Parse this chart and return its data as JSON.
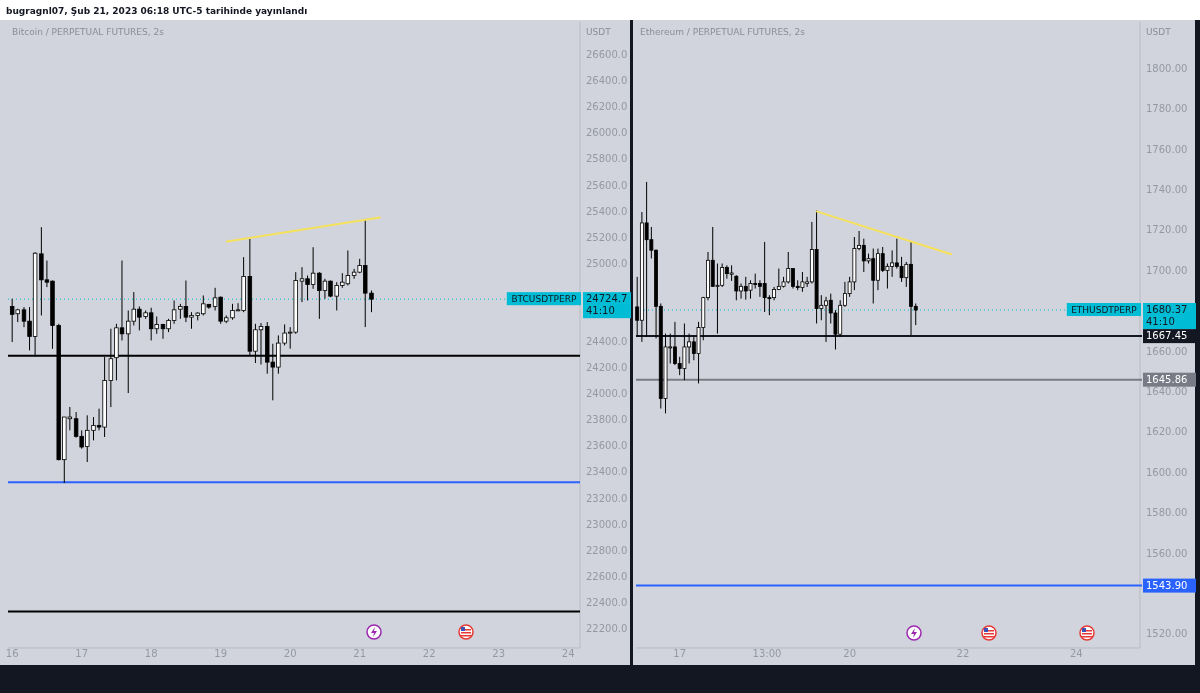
{
  "chart_data": [
    {
      "type": "candlestick",
      "title": "Bitcoin / PERPETUAL FUTURES, 2s",
      "ylabel": "USDT",
      "annotations": [
        "bugragnl07, Şub 21, 2023 06:18 UTC-5 tarihinde yayınlandı",
        {
          "text": "BTCUSDTPERP",
          "y": 24724.7
        }
      ],
      "x": [
        16,
        16.08,
        16.17,
        16.25,
        16.33,
        16.42,
        16.5,
        16.58,
        16.67,
        16.75,
        16.83,
        16.92,
        17,
        17.08,
        17.17,
        17.25,
        17.33,
        17.42,
        17.5,
        17.58,
        17.67,
        17.75,
        17.83,
        17.92,
        18,
        18.08,
        18.17,
        18.25,
        18.33,
        18.42,
        18.5,
        18.58,
        18.67,
        18.75,
        18.83,
        18.92,
        19,
        19.08,
        19.17,
        19.25,
        19.33,
        19.42,
        19.5,
        19.58,
        19.67,
        19.75,
        19.83,
        19.92,
        20,
        20.08,
        20.17,
        20.25,
        20.33,
        20.42,
        20.5,
        20.58,
        20.67,
        20.75,
        20.83,
        20.92,
        21,
        21.08,
        21.17
      ],
      "ohlc": [
        [
          24669,
          24728,
          24396,
          24608
        ],
        [
          24613,
          24651,
          24549,
          24643
        ],
        [
          24643,
          24664,
          24510,
          24556
        ],
        [
          24556,
          24664,
          24332,
          24439
        ],
        [
          24439,
          25085,
          24286,
          25077
        ],
        [
          25072,
          25277,
          24600,
          24873
        ],
        [
          24873,
          25021,
          24817,
          24855
        ],
        [
          24863,
          24868,
          24344,
          24523
        ],
        [
          24523,
          24536,
          23489,
          23494
        ],
        [
          23494,
          23821,
          23315,
          23821
        ],
        [
          23808,
          23898,
          23719,
          23821
        ],
        [
          23808,
          23859,
          23663,
          23673
        ],
        [
          23673,
          23719,
          23578,
          23591
        ],
        [
          23596,
          23834,
          23476,
          23719
        ],
        [
          23719,
          23821,
          23642,
          23757
        ],
        [
          23757,
          23885,
          23719,
          23744
        ],
        [
          23744,
          24281,
          23668,
          24102
        ],
        [
          24102,
          24498,
          23897,
          24268
        ],
        [
          24276,
          24536,
          24102,
          24505
        ],
        [
          24505,
          25021,
          24408,
          24459
        ],
        [
          24459,
          24638,
          24005,
          24556
        ],
        [
          24556,
          24779,
          24523,
          24648
        ],
        [
          24648,
          24669,
          24485,
          24587
        ],
        [
          24592,
          24638,
          24574,
          24620
        ],
        [
          24620,
          24659,
          24408,
          24498
        ],
        [
          24498,
          24592,
          24459,
          24531
        ],
        [
          24531,
          24536,
          24421,
          24498
        ],
        [
          24498,
          24574,
          24472,
          24562
        ],
        [
          24562,
          24715,
          24536,
          24643
        ],
        [
          24648,
          24689,
          24574,
          24669
        ],
        [
          24669,
          24868,
          24549,
          24587
        ],
        [
          24587,
          24625,
          24498,
          24600
        ],
        [
          24600,
          24625,
          24562,
          24618
        ],
        [
          24613,
          24753,
          24600,
          24689
        ],
        [
          24684,
          24689,
          24651,
          24664
        ],
        [
          24669,
          24812,
          24638,
          24735
        ],
        [
          24740,
          24745,
          24536,
          24556
        ],
        [
          24556,
          24600,
          24541,
          24582
        ],
        [
          24582,
          24689,
          24567,
          24638
        ],
        [
          24638,
          24694,
          24633,
          24643
        ],
        [
          24638,
          25047,
          24625,
          24899
        ],
        [
          24899,
          25187,
          24293,
          24326
        ],
        [
          24326,
          24536,
          24235,
          24490
        ],
        [
          24490,
          24541,
          24224,
          24516
        ],
        [
          24516,
          24549,
          24153,
          24242
        ],
        [
          24242,
          24383,
          23949,
          24204
        ],
        [
          24204,
          24447,
          24153,
          24388
        ],
        [
          24388,
          24531,
          24370,
          24465
        ],
        [
          24465,
          24510,
          24345,
          24472
        ],
        [
          24472,
          24932,
          24459,
          24868
        ],
        [
          24863,
          24970,
          24702,
          24881
        ],
        [
          24881,
          24906,
          24715,
          24837
        ],
        [
          24837,
          25123,
          24804,
          24924
        ],
        [
          24924,
          24932,
          24574,
          24791
        ],
        [
          24791,
          24881,
          24728,
          24863
        ],
        [
          24863,
          24868,
          24740,
          24748
        ],
        [
          24748,
          24855,
          24638,
          24830
        ],
        [
          24830,
          24924,
          24812,
          24855
        ],
        [
          24843,
          25098,
          24830,
          24906
        ],
        [
          24906,
          24957,
          24881,
          24932
        ],
        [
          24932,
          25034,
          24924,
          24983
        ],
        [
          24983,
          25340,
          24511,
          24771
        ],
        [
          24771,
          24791,
          24625,
          24724.7
        ]
      ],
      "series": [
        {
          "type": "line",
          "x": [
            19.09,
            21.29
          ],
          "values": [
            25167,
            25351
          ],
          "color": "#f5e15a"
        }
      ],
      "xlim": [
        15.94,
        24.17
      ],
      "xticks": [
        16,
        17,
        18,
        19,
        20,
        21,
        22,
        23,
        24
      ],
      "ylim": [
        22050,
        26850
      ],
      "yticks": [
        {
          "value": 22200,
          "label": "22200.0"
        },
        {
          "value": 22400,
          "label": "22400.0"
        },
        {
          "value": 22600,
          "label": "22600.0"
        },
        {
          "value": 22800,
          "label": "22800.0"
        },
        {
          "value": 23000,
          "label": "23000.0"
        },
        {
          "value": 23200,
          "label": "23200.0"
        },
        {
          "value": 23400,
          "label": "23400.0"
        },
        {
          "value": 23600,
          "label": "23600.0"
        },
        {
          "value": 23800,
          "label": "23800.0"
        },
        {
          "value": 24000,
          "label": "24000.0"
        },
        {
          "value": 24200,
          "label": "24200.0"
        },
        {
          "value": 24400,
          "label": "24400.0"
        },
        {
          "value": 25000,
          "label": "25000.0"
        },
        {
          "value": 25200,
          "label": "25200.0"
        },
        {
          "value": 25400,
          "label": "25400.0"
        },
        {
          "value": 25600,
          "label": "25600.0"
        },
        {
          "value": 25800,
          "label": "25800.0"
        },
        {
          "value": 26000,
          "label": "26000.0"
        },
        {
          "value": 26200,
          "label": "26200.0"
        },
        {
          "value": 26400,
          "label": "26400.0"
        },
        {
          "value": 26600,
          "label": "26600.0"
        }
      ],
      "ref_lines": [
        {
          "axis": "y",
          "value": 24290,
          "color": "#000000",
          "line_style": "solid"
        },
        {
          "axis": "y",
          "value": 23320,
          "color": "#2962ff",
          "line_style": "solid"
        },
        {
          "axis": "y",
          "value": 22330,
          "color": "#000000",
          "line_style": "solid"
        },
        {
          "axis": "y",
          "value": 24724.7,
          "label": "24724.7\n41:10",
          "color": "#00bcd4",
          "line_style": "dotted"
        }
      ]
    },
    {
      "type": "candlestick",
      "title": "Ethereum / PERPETUAL FUTURES, 2s",
      "ylabel": "USDT",
      "annotations": [
        {
          "text": "ETHUSDTPERP",
          "y": 1680.37
        }
      ],
      "x": [
        "2023-02-16T06:00",
        "2023-02-16T08:00",
        "2023-02-16T10:00",
        "2023-02-16T12:00",
        "2023-02-16T14:00",
        "2023-02-16T16:00",
        "2023-02-16T18:00",
        "2023-02-16T20:00",
        "2023-02-16T22:00",
        "2023-02-17T00:00",
        "2023-02-17T02:00",
        "2023-02-17T04:00",
        "2023-02-17T06:00",
        "2023-02-17T08:00",
        "2023-02-17T10:00",
        "2023-02-17T12:00",
        "2023-02-17T14:00",
        "2023-02-17T16:00",
        "2023-02-17T18:00",
        "2023-02-17T20:00",
        "2023-02-17T22:00",
        "2023-02-18T00:00",
        "2023-02-18T02:00",
        "2023-02-18T04:00",
        "2023-02-18T06:00",
        "2023-02-18T08:00",
        "2023-02-18T10:00",
        "2023-02-18T12:00",
        "2023-02-18T14:00",
        "2023-02-18T16:00",
        "2023-02-18T18:00",
        "2023-02-18T20:00",
        "2023-02-18T22:00",
        "2023-02-19T00:00",
        "2023-02-19T02:00",
        "2023-02-19T04:00",
        "2023-02-19T06:00",
        "2023-02-19T08:00",
        "2023-02-19T10:00",
        "2023-02-19T12:00",
        "2023-02-19T14:00",
        "2023-02-19T16:00",
        "2023-02-19T18:00",
        "2023-02-19T20:00",
        "2023-02-19T22:00",
        "2023-02-20T00:00",
        "2023-02-20T02:00",
        "2023-02-20T04:00",
        "2023-02-20T06:00",
        "2023-02-20T08:00",
        "2023-02-20T10:00",
        "2023-02-20T12:00",
        "2023-02-20T14:00",
        "2023-02-20T16:00",
        "2023-02-20T18:00",
        "2023-02-20T20:00",
        "2023-02-20T22:00",
        "2023-02-21T00:00",
        "2023-02-21T02:00",
        "2023-02-21T04:00"
      ],
      "ohlc": [
        [
          1681.9,
          1696.8,
          1667.1,
          1675.3
        ],
        [
          1675.3,
          1728.9,
          1664.6,
          1723.5
        ],
        [
          1723.5,
          1743.8,
          1667.1,
          1715.2
        ],
        [
          1715.2,
          1721.5,
          1705.9,
          1710.0
        ],
        [
          1710.0,
          1710.3,
          1666.3,
          1682.2
        ],
        [
          1682.2,
          1683.6,
          1631.6,
          1636.6
        ],
        [
          1636.6,
          1668.7,
          1629.2,
          1662.1
        ],
        [
          1661.8,
          1668.7,
          1653.9,
          1662.1
        ],
        [
          1662.1,
          1674.5,
          1653.1,
          1653.9
        ],
        [
          1653.9,
          1657.2,
          1648.1,
          1651.4
        ],
        [
          1651.4,
          1673.7,
          1645.6,
          1662.1
        ],
        [
          1662.1,
          1668.7,
          1653.9,
          1664.6
        ],
        [
          1664.6,
          1667.1,
          1655.5,
          1658.8
        ],
        [
          1658.8,
          1674.5,
          1644.0,
          1671.7
        ],
        [
          1671.7,
          1686.9,
          1665.4,
          1686.5
        ],
        [
          1686.5,
          1709.1,
          1685.2,
          1705.0
        ],
        [
          1705.0,
          1721.5,
          1691.8,
          1692.1
        ],
        [
          1692.1,
          1703.4,
          1668.7,
          1692.6
        ],
        [
          1692.6,
          1703.4,
          1691.8,
          1701.4
        ],
        [
          1701.4,
          1702.5,
          1695.9,
          1698.4
        ],
        [
          1698.1,
          1702.5,
          1694.8,
          1698.7
        ],
        [
          1697.1,
          1697.6,
          1685.2,
          1689.8
        ],
        [
          1689.8,
          1693.5,
          1686.0,
          1692.1
        ],
        [
          1692.1,
          1696.8,
          1685.5,
          1689.8
        ],
        [
          1690.2,
          1695.1,
          1686.0,
          1693.5
        ],
        [
          1693.5,
          1698.4,
          1691.0,
          1693.2
        ],
        [
          1693.5,
          1695.1,
          1686.9,
          1692.1
        ],
        [
          1693.5,
          1714.1,
          1679.4,
          1686.5
        ],
        [
          1686.5,
          1687.7,
          1677.8,
          1686.2
        ],
        [
          1686.5,
          1691.8,
          1685.2,
          1690.5
        ],
        [
          1690.5,
          1700.9,
          1690.2,
          1692.1
        ],
        [
          1692.1,
          1696.8,
          1691.5,
          1694.3
        ],
        [
          1694.3,
          1709.1,
          1693.5,
          1700.9
        ],
        [
          1700.9,
          1700.9,
          1691.0,
          1692.1
        ],
        [
          1692.1,
          1695.1,
          1690.2,
          1691.5
        ],
        [
          1691.5,
          1699.2,
          1689.4,
          1694.3
        ],
        [
          1693.5,
          1696.8,
          1691.8,
          1694.3
        ],
        [
          1694.3,
          1724.0,
          1693.5,
          1710.3
        ],
        [
          1710.3,
          1729.7,
          1673.7,
          1681.1
        ],
        [
          1681.1,
          1687.7,
          1675.3,
          1682.7
        ],
        [
          1682.7,
          1686.9,
          1664.6,
          1684.9
        ],
        [
          1685.2,
          1688.5,
          1673.7,
          1678.9
        ],
        [
          1678.9,
          1680.3,
          1660.8,
          1668.4
        ],
        [
          1668.4,
          1685.2,
          1667.1,
          1682.7
        ],
        [
          1682.7,
          1694.3,
          1681.9,
          1688.5
        ],
        [
          1688.5,
          1696.8,
          1686.9,
          1694.3
        ],
        [
          1694.3,
          1716.5,
          1690.2,
          1710.8
        ],
        [
          1710.8,
          1719.5,
          1709.9,
          1712.4
        ],
        [
          1712.4,
          1715.7,
          1699.2,
          1704.7
        ],
        [
          1704.7,
          1708.3,
          1703.4,
          1705.8
        ],
        [
          1705.8,
          1710.8,
          1683.6,
          1695.1
        ],
        [
          1695.1,
          1710.8,
          1690.2,
          1708.3
        ],
        [
          1708.3,
          1711.6,
          1699.2,
          1700.0
        ],
        [
          1700.0,
          1703.4,
          1691.0,
          1702.0
        ],
        [
          1702.0,
          1709.9,
          1696.8,
          1703.7
        ],
        [
          1703.7,
          1715.7,
          1700.9,
          1702.0
        ],
        [
          1702.0,
          1706.7,
          1694.3,
          1696.4
        ],
        [
          1696.4,
          1704.2,
          1691.8,
          1703.0
        ],
        [
          1703.0,
          1714.1,
          1667.9,
          1682.2
        ],
        [
          1682.2,
          1683.6,
          1672.9,
          1680.37
        ]
      ],
      "series": [
        {
          "type": "line",
          "x": [
            "2023-02-19T10:00",
            "2023-02-21T19:00"
          ],
          "values": [
            1729.2,
            1708.0
          ],
          "color": "#f5e15a"
        }
      ],
      "xlim": [
        "2023-02-16T05:30",
        "2023-02-25T03:00"
      ],
      "xticks": [
        {
          "value": "2023-02-17",
          "label": "17"
        },
        {
          "value": "2023-02-18T13:00",
          "label": "13:00"
        },
        {
          "value": "2023-02-20",
          "label": "20"
        },
        {
          "value": "2023-02-22",
          "label": "22"
        },
        {
          "value": "2023-02-24",
          "label": "24"
        }
      ],
      "ylim": [
        1513,
        1823
      ],
      "yticks": [
        {
          "value": 1520,
          "label": "1520.00"
        },
        {
          "value": 1560,
          "label": "1560.00"
        },
        {
          "value": 1580,
          "label": "1580.00"
        },
        {
          "value": 1600,
          "label": "1600.00"
        },
        {
          "value": 1620,
          "label": "1620.00"
        },
        {
          "value": 1640,
          "label": "1640.00"
        },
        {
          "value": 1660,
          "label": "1660.00"
        },
        {
          "value": 1700,
          "label": "1700.00"
        },
        {
          "value": 1720,
          "label": "1720.00"
        },
        {
          "value": 1740,
          "label": "1740.00"
        },
        {
          "value": 1760,
          "label": "1760.00"
        },
        {
          "value": 1780,
          "label": "1780.00"
        },
        {
          "value": 1800,
          "label": "1800.00"
        }
      ],
      "ref_lines": [
        {
          "axis": "y",
          "value": 1680.37,
          "label": "1680.37\n41:10",
          "color": "#00bcd4",
          "line_style": "dotted"
        },
        {
          "axis": "y",
          "value": 1667.45,
          "label": "1667.45",
          "color": "#131722",
          "line_style": "solid"
        },
        {
          "axis": "y",
          "value": 1645.86,
          "label": "1645.86",
          "color": "#787b86",
          "line_style": "solid"
        },
        {
          "axis": "y",
          "value": 1543.9,
          "label": "1543.90",
          "color": "#2962ff",
          "line_style": "solid"
        }
      ]
    }
  ]
}
